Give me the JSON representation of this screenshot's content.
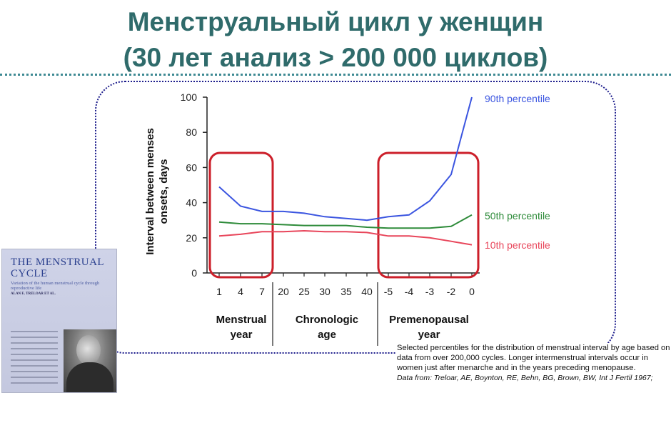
{
  "title_line1": "Менструальный цикл у женщин",
  "title_line2": "(30 лет анализ > 200 000 циклов)",
  "book": {
    "title": "THE MENSTRUAL CYCLE",
    "subtitle": "Variation of the human menstrual cycle through reproductive life",
    "author": "ALAN E. TRELOAR ET AL."
  },
  "caption": {
    "text": "Selected percentiles for the distribution of menstrual interval by age based on data from over 200,000 cycles. Longer intermenstrual intervals occur in women just after menarche and in the years preceding menopause.",
    "source": "Data from: Treloar, AE, Boynton, RE, Behn, BG, Brown, BW, Int J Fertil 1967;"
  },
  "chart_data": {
    "type": "line",
    "ylabel_line1": "Interval between menses",
    "ylabel_line2": "onsets, days",
    "ylim": [
      0,
      100
    ],
    "yticks": [
      0,
      20,
      40,
      60,
      80,
      100
    ],
    "categories": [
      "1",
      "4",
      "7",
      "20",
      "25",
      "30",
      "35",
      "40",
      "-5",
      "-4",
      "-3",
      "-2",
      "0"
    ],
    "groups": [
      {
        "lines": [
          "Menstrual",
          "year"
        ],
        "from": 0,
        "to": 2
      },
      {
        "lines": [
          "Chronologic",
          "age"
        ],
        "from": 3,
        "to": 7
      },
      {
        "lines": [
          "Premenopausal",
          "year"
        ],
        "from": 8,
        "to": 12
      }
    ],
    "highlight_boxes": [
      {
        "from": 0,
        "to": 2
      },
      {
        "from": 8,
        "to": 12
      }
    ],
    "series": [
      {
        "name": "90th percentile",
        "color": "#3b55e0",
        "values": [
          49,
          38,
          35,
          35,
          34,
          32,
          31,
          30,
          32,
          33,
          41,
          56,
          100
        ]
      },
      {
        "name": "50th percentile",
        "color": "#2e8b3a",
        "values": [
          29,
          28,
          28,
          27.5,
          27,
          27,
          27,
          26,
          25.5,
          25.5,
          25.5,
          26.5,
          33
        ]
      },
      {
        "name": "10th percentile",
        "color": "#e8455a",
        "values": [
          21,
          22,
          23.5,
          23.5,
          24,
          23.5,
          23.5,
          23,
          21,
          21,
          20,
          18,
          16
        ]
      }
    ]
  }
}
